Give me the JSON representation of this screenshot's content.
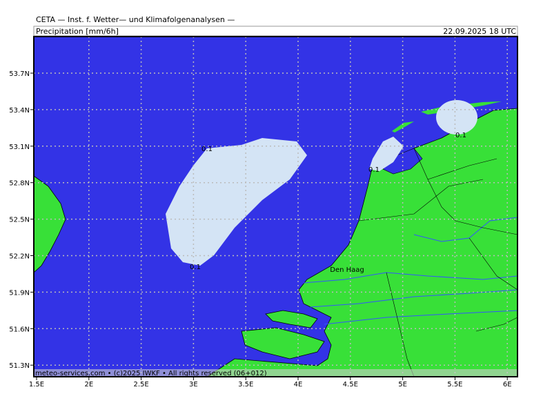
{
  "header": {
    "institute": "CETA — Inst. f. Wetter— und Klimafolgenanalysen —",
    "parameter": "Precipitation [mm/6h]",
    "valid_time": "22.09.2025 18 UTC"
  },
  "map": {
    "lat_ticks": [
      "53.7N",
      "53.4N",
      "53.1N",
      "52.8N",
      "52.5N",
      "52.2N",
      "51.9N",
      "51.6N",
      "51.3N"
    ],
    "lon_ticks": [
      "1.5E",
      "2E",
      "2.5E",
      "3E",
      "3.5E",
      "4E",
      "4.5E",
      "5E",
      "5.5E",
      "6E"
    ],
    "contour_labels": [
      "0.1",
      "0.1",
      "0.1",
      "0.1"
    ],
    "places": [
      "Den Haag"
    ]
  },
  "footer": {
    "credit": "meteo-services.com • (c)2025 IWKF • All rights reserved (06+012)"
  }
}
